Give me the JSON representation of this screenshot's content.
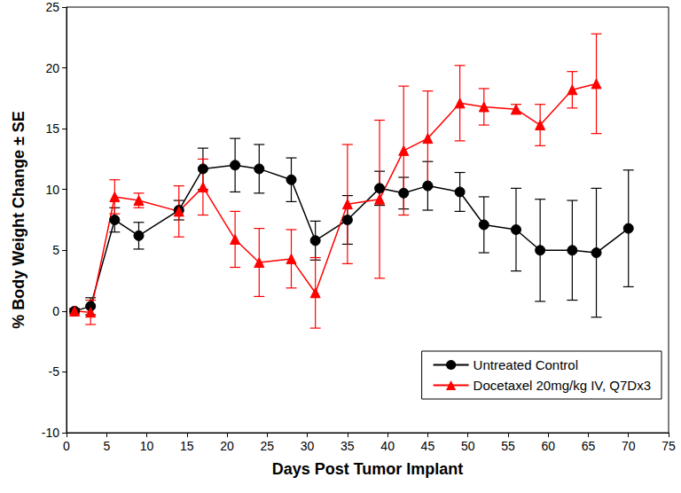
{
  "chart_data": {
    "type": "line",
    "x_label": "Days Post Tumor Implant",
    "y_label": "% Body Weight Change ± SE",
    "xlim": [
      0,
      75
    ],
    "xticks": [
      0,
      5,
      10,
      15,
      20,
      25,
      30,
      35,
      40,
      45,
      50,
      55,
      60,
      65,
      70,
      75
    ],
    "ylim": [
      -10,
      25
    ],
    "yticks": [
      -10,
      -5,
      0,
      5,
      10,
      15,
      20,
      25
    ],
    "grid": false,
    "legend": "lower right",
    "series": [
      {
        "name": "Untreated Control",
        "color": "#000000",
        "marker": "circle",
        "line_style": "solid",
        "x": [
          1,
          3,
          6,
          9,
          14,
          17,
          21,
          24,
          28,
          31,
          35,
          39,
          42,
          45,
          49,
          52,
          56,
          59,
          63,
          66,
          70
        ],
        "values": [
          0,
          0.4,
          7.5,
          6.2,
          8.3,
          11.7,
          12.0,
          11.7,
          10.8,
          5.8,
          7.5,
          10.1,
          9.7,
          10.3,
          9.8,
          7.1,
          6.7,
          5.0,
          5.0,
          4.8,
          6.8
        ],
        "errors": [
          0.2,
          0.7,
          1.0,
          1.1,
          0.8,
          1.7,
          2.2,
          2.0,
          1.8,
          1.6,
          2.0,
          1.4,
          1.3,
          2.0,
          1.6,
          2.3,
          3.4,
          4.2,
          4.1,
          5.3,
          4.8
        ]
      },
      {
        "name": "Docetaxel 20mg/kg IV, Q7Dx3",
        "color": "#ff0000",
        "marker": "triangle",
        "line_style": "solid",
        "x": [
          1,
          3,
          6,
          9,
          14,
          17,
          21,
          24,
          28,
          31,
          35,
          39,
          42,
          45,
          49,
          52,
          56,
          59,
          63,
          66
        ],
        "values": [
          0,
          -0.1,
          9.4,
          9.1,
          8.2,
          10.2,
          5.9,
          4.0,
          4.3,
          1.5,
          8.8,
          9.2,
          13.2,
          14.2,
          17.1,
          16.8,
          16.6,
          15.3,
          18.2,
          18.7
        ],
        "errors": [
          0.2,
          1.0,
          1.4,
          0.6,
          2.1,
          2.3,
          2.3,
          2.8,
          2.4,
          2.9,
          4.9,
          6.5,
          5.3,
          3.9,
          3.1,
          1.5,
          0.4,
          1.7,
          1.5,
          4.1
        ]
      }
    ]
  }
}
